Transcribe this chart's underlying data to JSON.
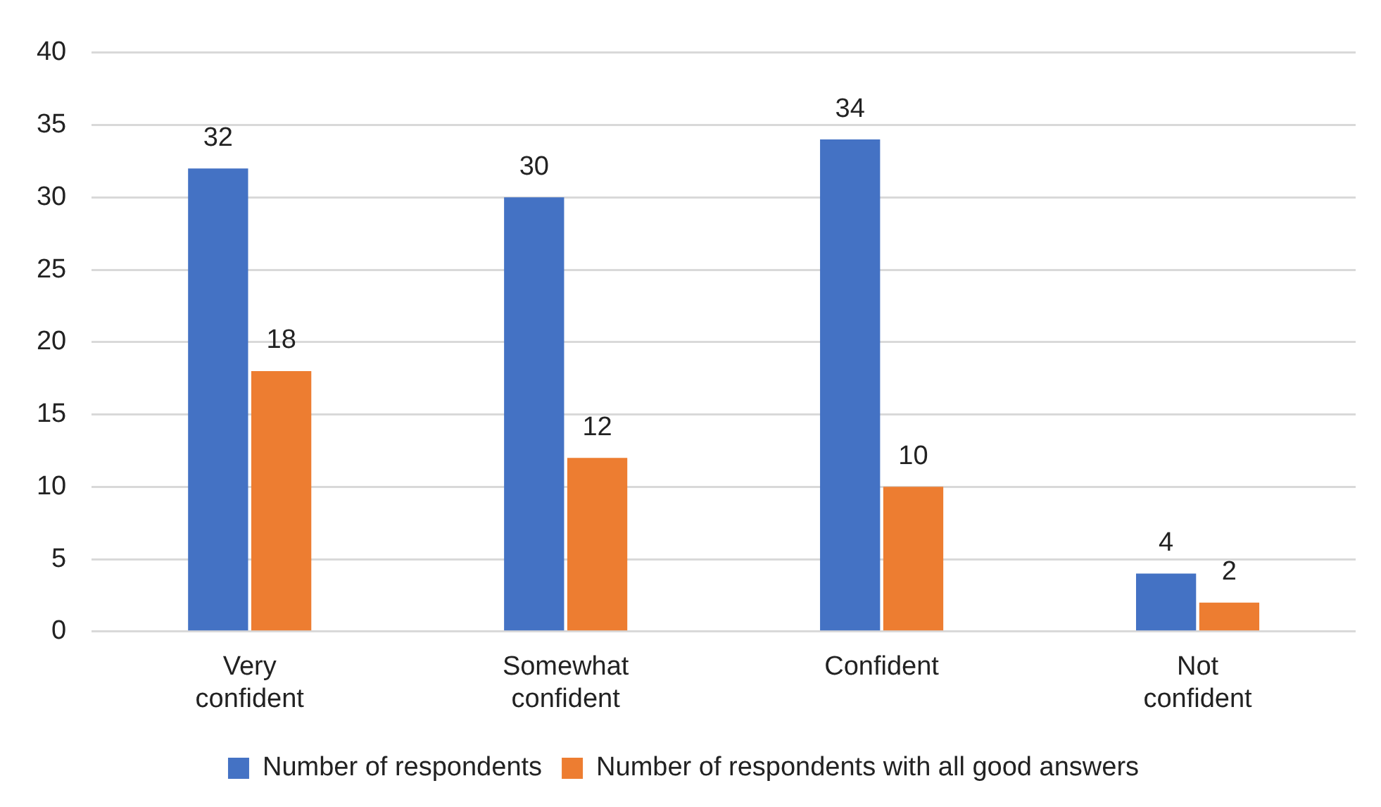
{
  "chart_data": {
    "type": "bar",
    "categories": [
      "Very confident",
      "Somewhat confident",
      "Confident",
      "Not confident"
    ],
    "series": [
      {
        "name": "Number of respondents",
        "color": "#4472c4",
        "values": [
          32,
          30,
          34,
          4
        ]
      },
      {
        "name": "Number of respondents with all good answers",
        "color": "#ed7d31",
        "values": [
          18,
          12,
          10,
          2
        ]
      }
    ],
    "ylim": [
      0,
      40
    ],
    "yticks": [
      0,
      5,
      10,
      15,
      20,
      25,
      30,
      35,
      40
    ],
    "grid": "y",
    "legend": "bottom",
    "data_labels": true
  }
}
